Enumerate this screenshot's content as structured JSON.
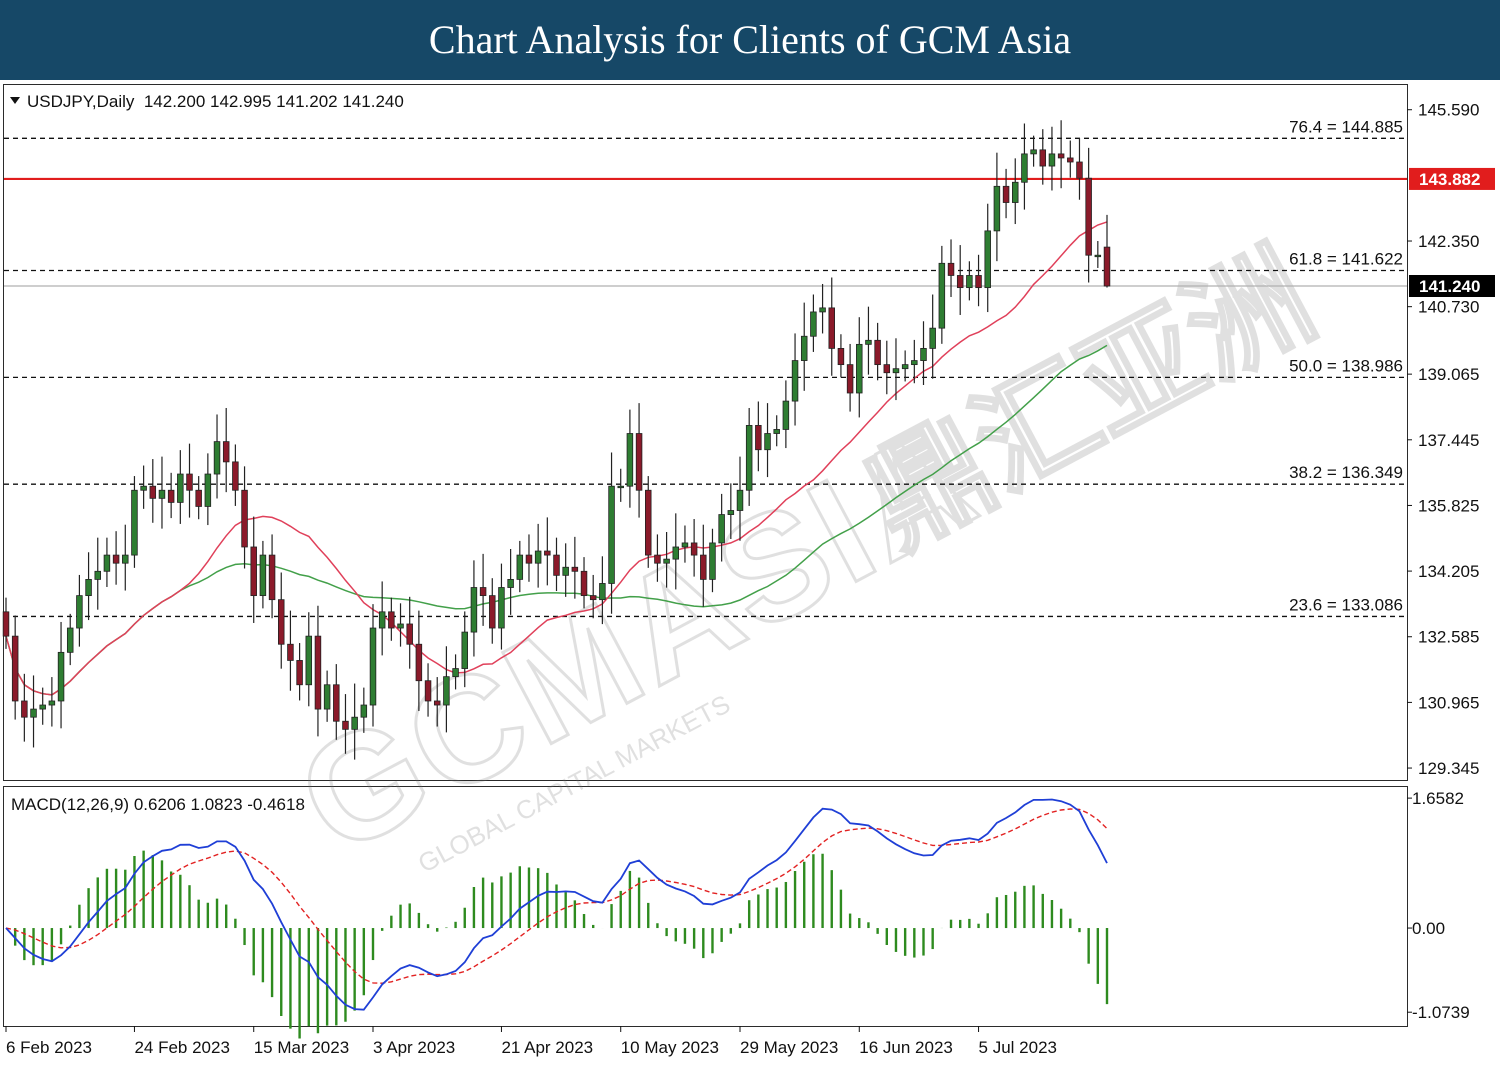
{
  "banner": {
    "title": "Chart Analysis for Clients of GCM Asia"
  },
  "colors": {
    "banner_bg": "#164867",
    "candle_up": "#2e7d32",
    "candle_down": "#8b1a2a",
    "wick": "#222222",
    "ma_short": "#e0405a",
    "ma_long": "#43a04a",
    "resistance": "#e11d1d",
    "macd_line": "#1f3fd6",
    "signal_line": "#e22222",
    "histogram": "#2e8b1f",
    "watermark": "#9a9a9a"
  },
  "header": {
    "dropdown_icon": "triangle-down-icon",
    "symbol_text": "USDJPY,Daily  142.200 142.995 141.202 141.240"
  },
  "watermark": {
    "text": "GCMASIA",
    "cjk": "鼎汇亚洲",
    "sub": "GLOBAL CAPITAL MARKETS"
  },
  "macd_header": {
    "text": "MACD(12,26,9) 0.6206 1.0823 -0.4618"
  },
  "chart_data": {
    "type": "candlestick",
    "symbol": "USDJPY",
    "timeframe": "Daily",
    "ohlc_header": {
      "open": 142.2,
      "high": 142.995,
      "low": 141.202,
      "close": 141.24
    },
    "price_axis": {
      "ylim": [
        129.05,
        146.2
      ],
      "ticks": [
        "145.590",
        "142.350",
        "140.730",
        "139.065",
        "137.445",
        "135.825",
        "134.205",
        "132.585",
        "130.965",
        "129.345"
      ]
    },
    "x_axis": {
      "labels": [
        {
          "label": "6 Feb 2023",
          "index": 0
        },
        {
          "label": "24 Feb 2023",
          "index": 14
        },
        {
          "label": "15 Mar 2023",
          "index": 27
        },
        {
          "label": "3 Apr 2023",
          "index": 40
        },
        {
          "label": "21 Apr 2023",
          "index": 54
        },
        {
          "label": "10 May 2023",
          "index": 67
        },
        {
          "label": "29 May 2023",
          "index": 80
        },
        {
          "label": "16 Jun 2023",
          "index": 93
        },
        {
          "label": "5 Jul 2023",
          "index": 106
        }
      ]
    },
    "current_price": {
      "value": 141.24,
      "label": "141.240"
    },
    "resistance": {
      "value": 143.882,
      "label": "143.882"
    },
    "fibonacci": [
      {
        "level": "76.4",
        "value": 144.885,
        "label": "76.4 = 144.885"
      },
      {
        "level": "61.8",
        "value": 141.622,
        "label": "61.8 = 141.622"
      },
      {
        "level": "50.0",
        "value": 138.986,
        "label": "50.0 = 138.986"
      },
      {
        "level": "38.2",
        "value": 136.349,
        "label": "38.2 = 136.349"
      },
      {
        "level": "23.6",
        "value": 133.086,
        "label": "23.6 = 133.086"
      }
    ],
    "closes": [
      132.6,
      131.0,
      130.6,
      130.8,
      130.9,
      131.0,
      132.2,
      132.8,
      133.6,
      134.0,
      134.2,
      134.6,
      134.4,
      134.6,
      136.2,
      136.3,
      136.0,
      136.2,
      135.9,
      136.6,
      136.2,
      135.8,
      136.6,
      137.4,
      136.9,
      136.2,
      134.8,
      133.6,
      134.6,
      133.5,
      132.4,
      132.0,
      131.4,
      132.6,
      130.8,
      131.4,
      130.5,
      130.3,
      130.6,
      130.9,
      132.8,
      133.2,
      132.8,
      132.9,
      132.4,
      131.5,
      131.0,
      130.9,
      131.6,
      131.8,
      132.7,
      133.8,
      133.6,
      132.8,
      133.8,
      134.0,
      134.6,
      134.4,
      134.7,
      134.6,
      134.1,
      134.3,
      134.2,
      133.6,
      133.5,
      133.9,
      136.3,
      136.3,
      137.6,
      136.2,
      134.6,
      134.4,
      134.5,
      134.8,
      134.9,
      134.6,
      134.0,
      134.9,
      135.6,
      135.7,
      136.2,
      137.8,
      137.2,
      137.6,
      137.7,
      138.4,
      139.4,
      140.0,
      140.6,
      140.7,
      139.7,
      139.3,
      138.6,
      139.8,
      139.9,
      139.3,
      139.1,
      139.2,
      139.3,
      139.4,
      139.7,
      140.2,
      141.8,
      141.5,
      141.2,
      141.5,
      141.2,
      142.6,
      143.7,
      143.3,
      143.8,
      144.5,
      144.6,
      144.2,
      144.5,
      144.4,
      144.3,
      143.9,
      142.0,
      142.0,
      141.24
    ],
    "ma_short_period_note": "",
    "macd": {
      "params": "12,26,9",
      "macd_value": 0.6206,
      "signal_value": 1.0823,
      "hist_value": -0.4618,
      "axis_ticks": [
        "1.6582",
        "0.00",
        "-1.0739"
      ],
      "ylim": [
        -1.25,
        1.8
      ]
    }
  }
}
